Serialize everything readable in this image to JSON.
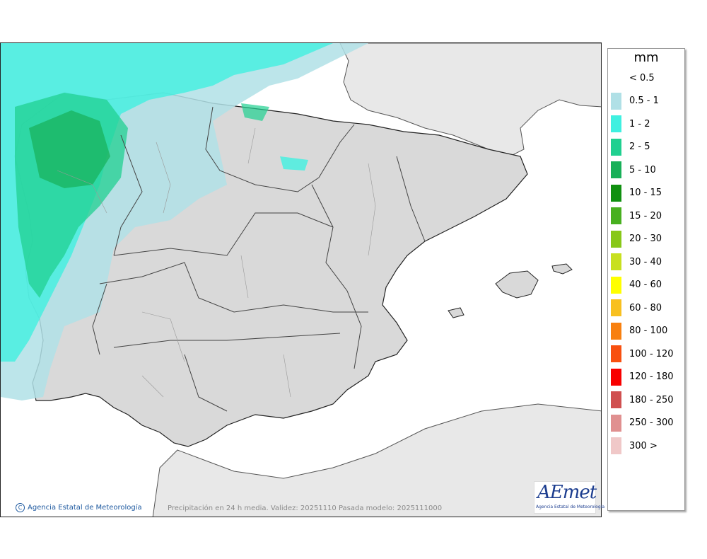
{
  "legend": {
    "title": "mm",
    "items": [
      {
        "label": "< 0.5",
        "color": "#ffffff"
      },
      {
        "label": "0.5 - 1",
        "color": "#b0e0e6"
      },
      {
        "label": "1 - 2",
        "color": "#40f0e0"
      },
      {
        "label": "2 - 5",
        "color": "#20d090"
      },
      {
        "label": "5 - 10",
        "color": "#18b058"
      },
      {
        "label": "10 - 15",
        "color": "#109010"
      },
      {
        "label": "15 - 20",
        "color": "#48b020"
      },
      {
        "label": "20 - 30",
        "color": "#88c818"
      },
      {
        "label": "30 - 40",
        "color": "#c8e020"
      },
      {
        "label": "40 - 60",
        "color": "#ffff00"
      },
      {
        "label": "60 - 80",
        "color": "#f8c020"
      },
      {
        "label": "80 - 100",
        "color": "#f88010"
      },
      {
        "label": "100 - 120",
        "color": "#f85010"
      },
      {
        "label": "120 - 180",
        "color": "#f80000"
      },
      {
        "label": "180 - 250",
        "color": "#d05050"
      },
      {
        "label": "250 - 300",
        "color": "#e09090"
      },
      {
        "label": "300 >",
        "color": "#f0c8c8"
      }
    ]
  },
  "footer": {
    "credit": "Agencia Estatal de Meteorología",
    "validity": "Precipitación en 24 h media. Validez: 20251110 Pasada modelo: 2025111000"
  },
  "logo": {
    "brand": "AEmet",
    "subtitle": "Agencia Estatal de Meteorología"
  },
  "colors": {
    "sea": "#ffffff",
    "land": "#e8e8e8",
    "relief": "#d4d4d4",
    "borders": "#333333"
  }
}
